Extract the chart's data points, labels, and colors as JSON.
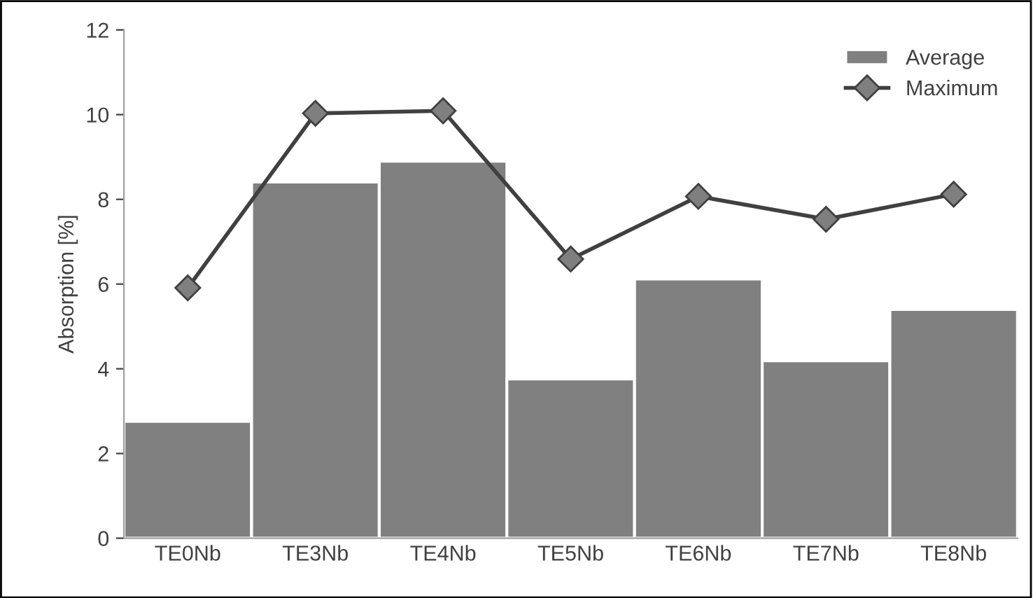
{
  "chart_data": {
    "type": "bar",
    "ylabel": "Absorption [%]",
    "categories": [
      "TE0Nb",
      "TE3Nb",
      "TE4Nb",
      "TE5Nb",
      "TE6Nb",
      "TE7Nb",
      "TE8Nb"
    ],
    "series": [
      {
        "name": "Average",
        "color": "#808080",
        "values": [
          2.76,
          8.41,
          8.9,
          3.76,
          6.12,
          4.19,
          5.4
        ]
      },
      {
        "name": "Maximum",
        "type": "line",
        "color": "#404040",
        "marker": "diamond",
        "values": [
          5.91,
          10.03,
          10.09,
          6.59,
          8.07,
          7.53,
          8.12
        ]
      }
    ],
    "ylim": [
      0,
      12
    ],
    "yticks": [
      0,
      2,
      4,
      6,
      8,
      10,
      12
    ],
    "grid": false,
    "legend": "top right"
  }
}
